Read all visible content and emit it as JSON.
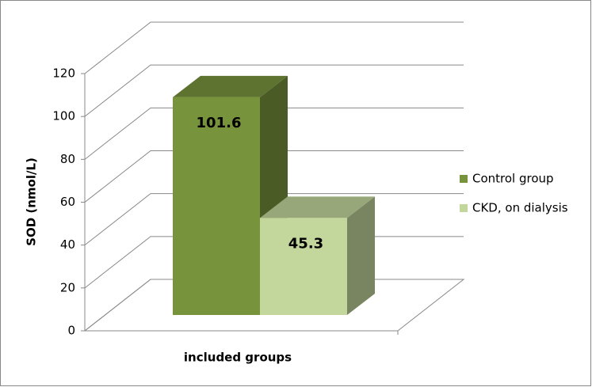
{
  "chart_data": {
    "type": "bar3d",
    "y_label": "SOD (nmol/L)",
    "x_label": "included groups",
    "categories": [
      null
    ],
    "series": [
      {
        "name": "Control group",
        "color": "#77933c",
        "values": [
          101.6
        ]
      },
      {
        "name": "CKD, on dialysis",
        "color": "#c3d69b",
        "values": [
          45.3
        ]
      }
    ],
    "ylim": [
      0,
      120
    ],
    "yticks": [
      0,
      20,
      40,
      60,
      80,
      100,
      120
    ],
    "grid": true,
    "legend": "right"
  }
}
